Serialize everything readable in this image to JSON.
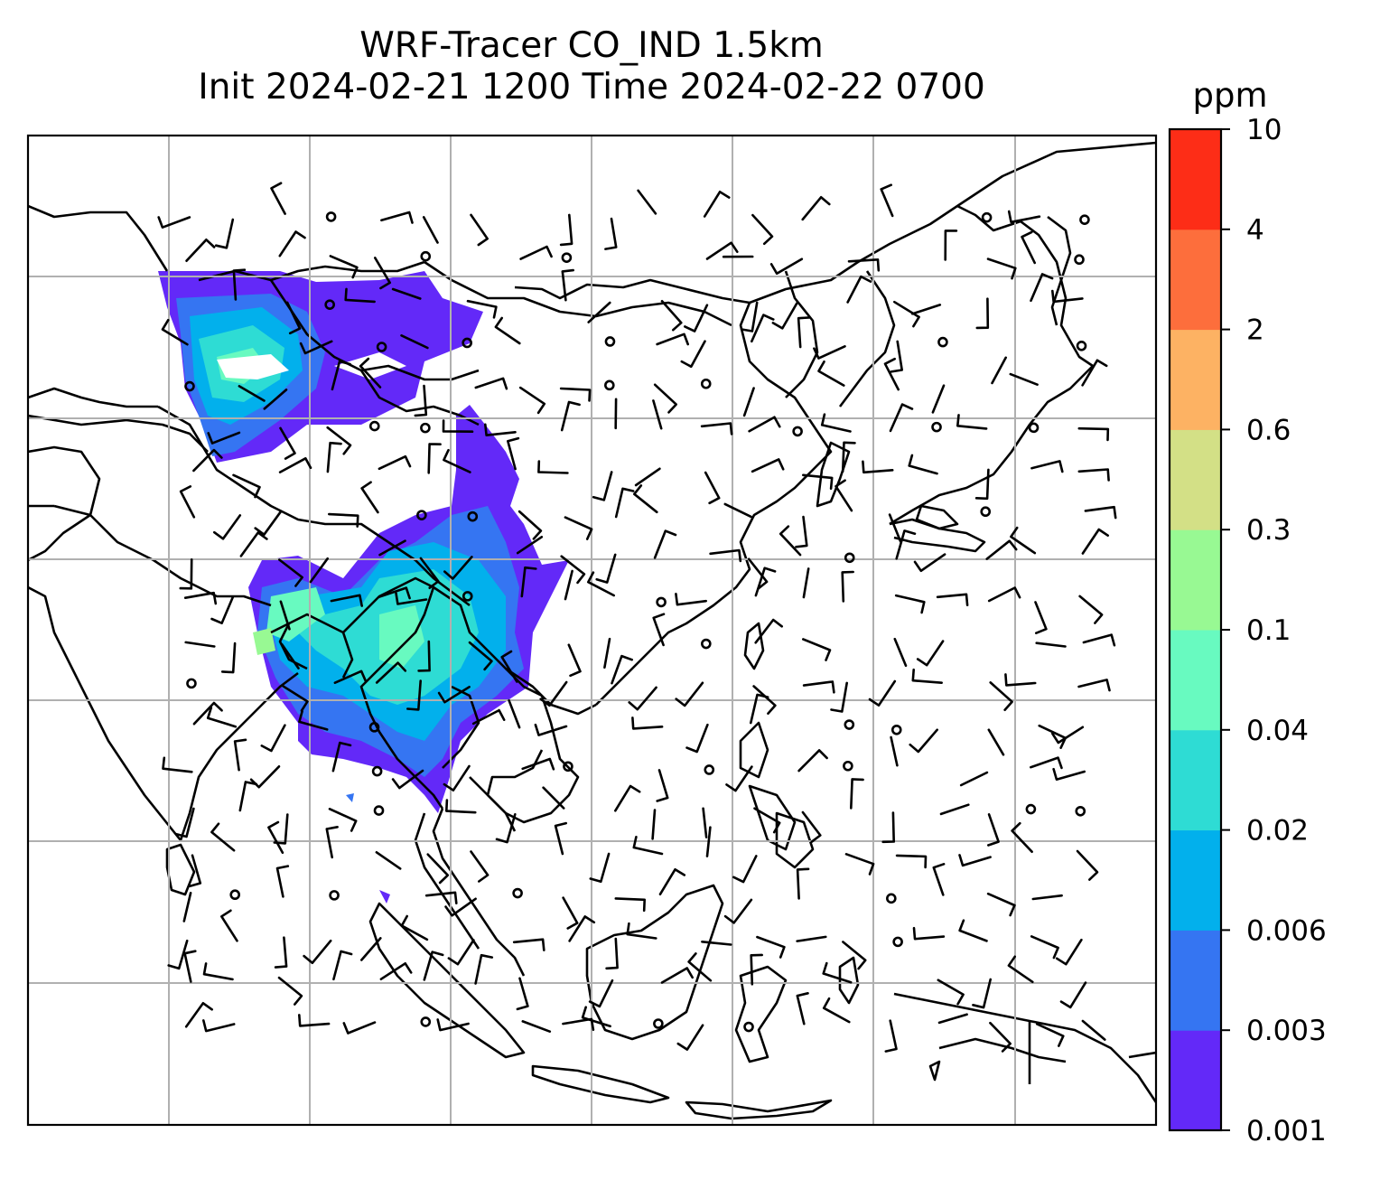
{
  "figure": {
    "title_line1": "WRF-Tracer CO_IND 1.5km",
    "title_line2": "Init 2024-02-21 1200 Time 2024-02-22 0700"
  },
  "colorbar": {
    "unit": "ppm",
    "levels": [
      "0.001",
      "0.003",
      "0.006",
      "0.02",
      "0.04",
      "0.1",
      "0.3",
      "0.6",
      "2",
      "4",
      "10"
    ],
    "colors": [
      "#6329f8",
      "#3575f2",
      "#02b0ec",
      "#2edcd4",
      "#68fac0",
      "#98f993",
      "#d3e086",
      "#fdb263",
      "#fd6e3c",
      "#fd2d17"
    ]
  },
  "map": {
    "grid_lines": true,
    "fill_colors": {
      "faint": "#6329f8",
      "light": "#3575f2",
      "mid": "#02b0ec",
      "cyan": "#2edcd4",
      "green": "#68fac0"
    },
    "wind_barbs": "black",
    "gridline_color": "#b0b0b0"
  }
}
